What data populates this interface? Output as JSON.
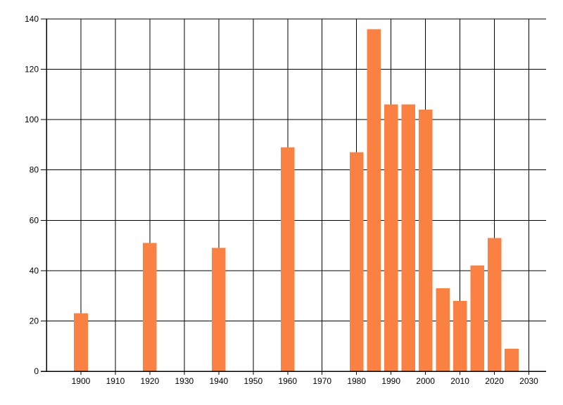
{
  "page": {
    "background": "#ffffff"
  },
  "chart_data": {
    "type": "bar",
    "title": "",
    "xlabel": "",
    "ylabel": "",
    "categories": [
      1900,
      1920,
      1940,
      1960,
      1980,
      1985,
      1990,
      1995,
      2000,
      2005,
      2010,
      2015,
      2020,
      2025
    ],
    "values": [
      23,
      51,
      49,
      89,
      87,
      136,
      106,
      106,
      104,
      33,
      28,
      42,
      53,
      9
    ],
    "x_ticks": [
      1900,
      1910,
      1920,
      1930,
      1940,
      1950,
      1960,
      1970,
      1980,
      1990,
      2000,
      2010,
      2020,
      2030
    ],
    "y_ticks": [
      0,
      20,
      40,
      60,
      80,
      100,
      120,
      140
    ],
    "xlim": [
      1890,
      2035
    ],
    "ylim": [
      0,
      140
    ],
    "bar_width_years": 4,
    "grid": "on",
    "legend": "none",
    "colors": {
      "bar": "#fb8143",
      "grid": "#000000",
      "axis": "#000000",
      "text": "#000000",
      "background": "#ffffff"
    }
  }
}
